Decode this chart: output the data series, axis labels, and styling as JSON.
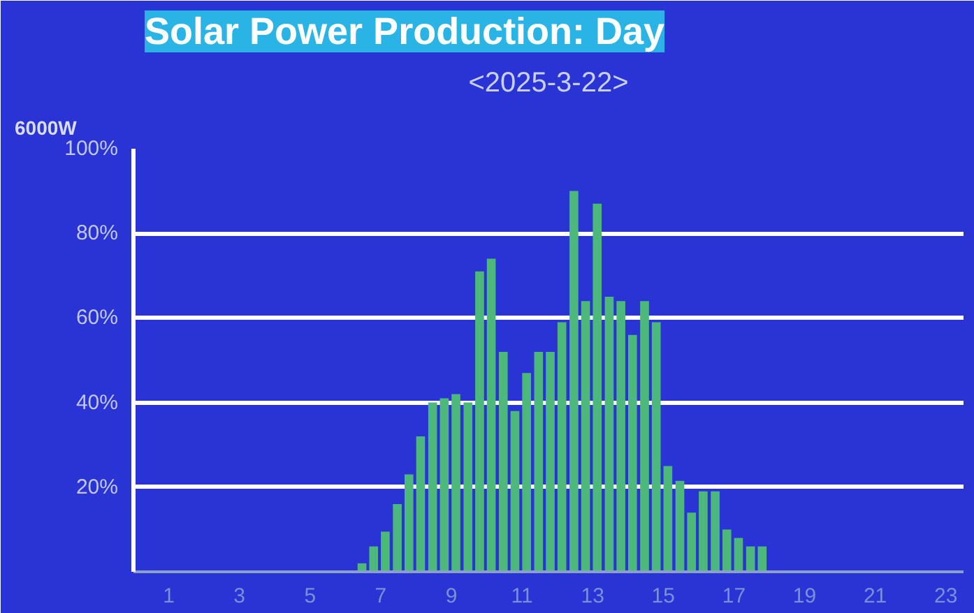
{
  "chart_data": {
    "type": "bar",
    "title": "Solar Power Production: Day",
    "subtitle": "<2025-3-22>",
    "ylabel": "6000W",
    "x": [
      6.47,
      6.8,
      7.13,
      7.47,
      7.8,
      8.13,
      8.47,
      8.8,
      9.13,
      9.47,
      9.8,
      10.13,
      10.47,
      10.8,
      11.13,
      11.47,
      11.8,
      12.13,
      12.47,
      12.8,
      13.13,
      13.47,
      13.8,
      14.13,
      14.47,
      14.8,
      15.13,
      15.47,
      15.8,
      16.13,
      16.47,
      16.8,
      17.13,
      17.47,
      17.8
    ],
    "values": [
      2,
      6,
      9.5,
      16,
      23,
      32,
      40,
      41,
      42,
      40,
      71,
      74,
      52,
      38,
      47,
      52,
      52,
      59,
      90,
      64,
      87,
      65,
      64,
      56,
      64,
      59,
      25,
      21.5,
      14,
      19,
      19,
      10,
      8,
      6,
      6
    ],
    "color": "#4cb87c",
    "xlim": [
      0,
      23.5
    ],
    "xticks": [
      1,
      3,
      5,
      7,
      9,
      11,
      13,
      15,
      17,
      19,
      21,
      23
    ],
    "ylim": [
      0,
      100
    ],
    "yticks": [
      {
        "value": 20,
        "label": "20%"
      },
      {
        "value": 40,
        "label": "40%"
      },
      {
        "value": 60,
        "label": "60%"
      },
      {
        "value": 80,
        "label": "80%"
      },
      {
        "value": 100,
        "label": "100%"
      }
    ],
    "grid": "y"
  }
}
